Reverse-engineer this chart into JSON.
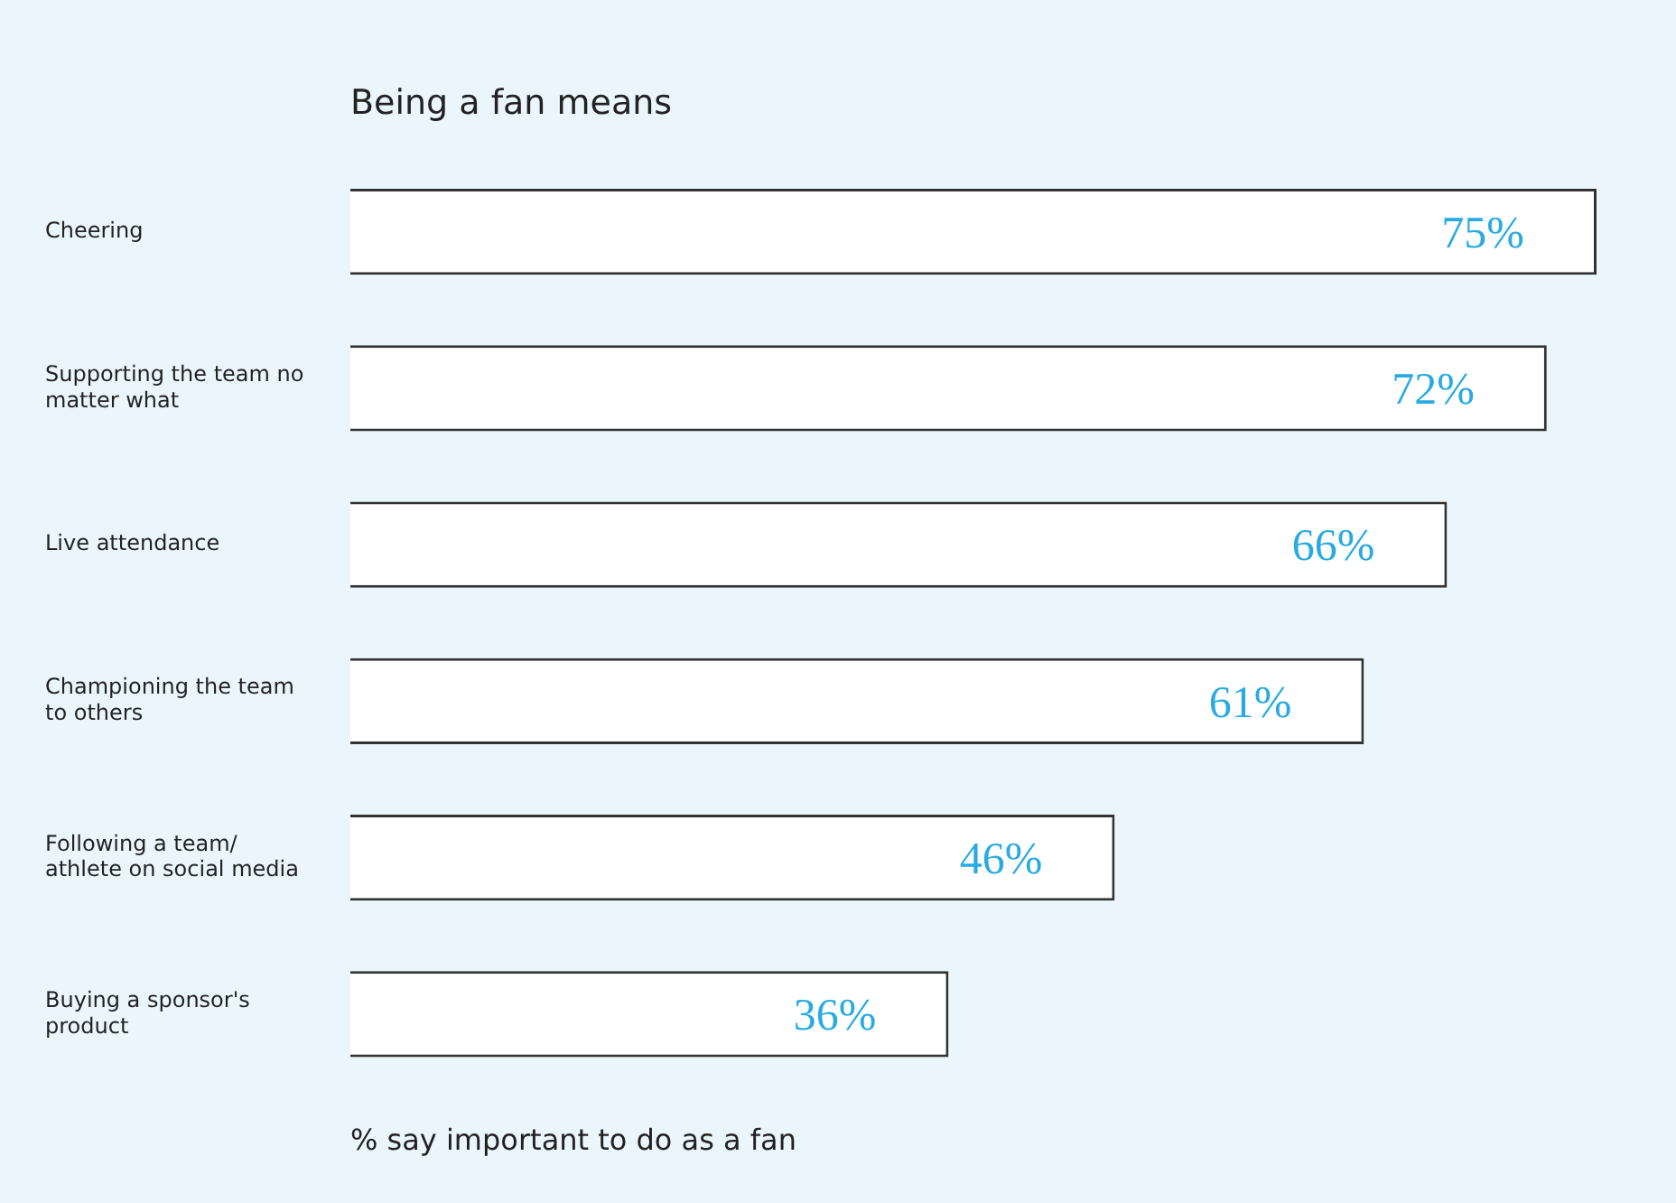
{
  "chart_data": {
    "type": "bar",
    "orientation": "horizontal",
    "title": "Being a fan means",
    "xlabel": "% say important to do as a fan",
    "categories": [
      "Cheering",
      "Supporting the team no matter what",
      "Live attendance",
      "Championing the team to others",
      "Following a team/ athlete on social media",
      "Buying a sponsor's product"
    ],
    "values": [
      75,
      72,
      66,
      61,
      46,
      36
    ],
    "value_labels": [
      "75%",
      "72%",
      "66%",
      "61%",
      "46%",
      "36%"
    ],
    "color": "#ffffff",
    "xlim": [
      0,
      75
    ],
    "tick_labels": "y",
    "grid": false,
    "legend": false
  }
}
